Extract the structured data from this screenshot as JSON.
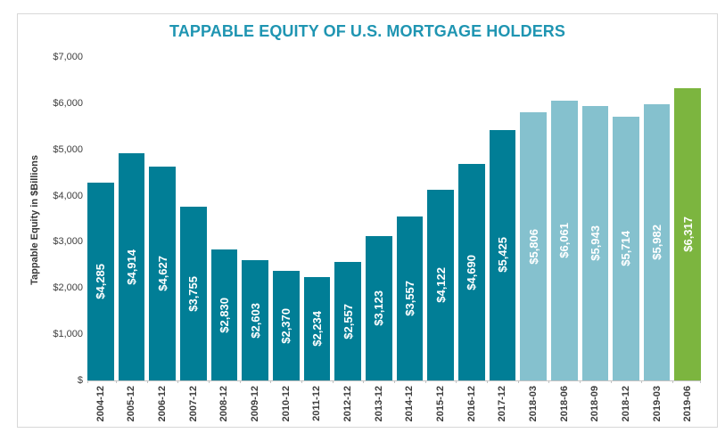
{
  "chart_data": {
    "type": "bar",
    "title": "TAPPABLE EQUITY OF U.S. MORTGAGE HOLDERS",
    "xlabel": "",
    "ylabel": "Tappable Equity in $Billions",
    "categories": [
      "2004-12",
      "2005-12",
      "2006-12",
      "2007-12",
      "2008-12",
      "2009-12",
      "2010-12",
      "2011-12",
      "2012-12",
      "2013-12",
      "2014-12",
      "2015-12",
      "2016-12",
      "2017-12",
      "2018-03",
      "2018-06",
      "2018-09",
      "2018-12",
      "2019-03",
      "2019-06"
    ],
    "values": [
      4285,
      4914,
      4627,
      3755,
      2830,
      2603,
      2370,
      2234,
      2557,
      3123,
      3557,
      4122,
      4690,
      5425,
      5806,
      6061,
      5943,
      5714,
      5982,
      6317
    ],
    "bar_labels": [
      "$4,285",
      "$4,914",
      "$4,627",
      "$3,755",
      "$2,830",
      "$2,603",
      "$2,370",
      "$2,234",
      "$2,557",
      "$3,123",
      "$3,557",
      "$4,122",
      "$4,690",
      "$5,425",
      "$5,806",
      "$6,061",
      "$5,943",
      "$5,714",
      "$5,982",
      "$6,317"
    ],
    "bar_color_keys": [
      "annual",
      "annual",
      "annual",
      "annual",
      "annual",
      "annual",
      "annual",
      "annual",
      "annual",
      "annual",
      "annual",
      "annual",
      "annual",
      "annual",
      "quarterly",
      "quarterly",
      "quarterly",
      "quarterly",
      "quarterly",
      "latest"
    ],
    "ylim": [
      0,
      7000
    ],
    "ytick_values": [
      7000,
      6000,
      5000,
      4000,
      3000,
      2000,
      1000,
      0
    ],
    "ytick_labels": [
      "$7,000",
      "$6,000",
      "$5,000",
      "$4,000",
      "$3,000",
      "$2,000",
      "$1,000",
      "$"
    ],
    "grid": false,
    "legend": "none",
    "bar_label_position": "inside-center",
    "bar_label_rotation": -90,
    "x_tick_label_rotation": -90,
    "colors": {
      "annual": "#017e96",
      "quarterly": "#85c1ce",
      "latest": "#7cb53f",
      "title": "#1f95b2",
      "bar_label_text": "#ffffff",
      "axis_text": "#404040",
      "axis_line": "#c3c3c3",
      "frame_border": "#d8d8d8",
      "background": "#ffffff"
    }
  }
}
